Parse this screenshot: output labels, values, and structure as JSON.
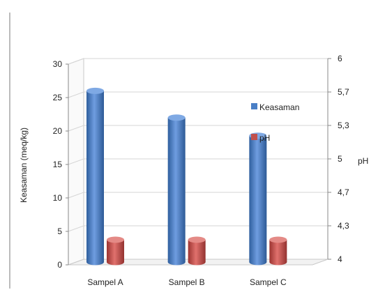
{
  "chart_data": {
    "type": "bar",
    "categories": [
      "Sampel A",
      "Sampel B",
      "Sampel C"
    ],
    "ylabel": "Keasaman (meq/kg)",
    "y2label": "pH",
    "ylim": [
      0,
      30
    ],
    "y2lim": [
      4,
      6
    ],
    "yticks": [
      "0",
      "5",
      "10",
      "15",
      "20",
      "25",
      "30"
    ],
    "y2ticks": [
      "4",
      "4,3",
      "4,7",
      "5",
      "5,3",
      "5,7",
      "6"
    ],
    "series": [
      {
        "name": "Keasaman",
        "axis": "left",
        "values": [
          26,
          22,
          19.3
        ],
        "color": "#4a7fc6"
      },
      {
        "name": "pH",
        "axis": "right",
        "values": [
          4.25,
          4.25,
          4.25
        ],
        "color": "#c0504d"
      }
    ],
    "legend_position": "right",
    "three_d": true,
    "grid": true
  }
}
